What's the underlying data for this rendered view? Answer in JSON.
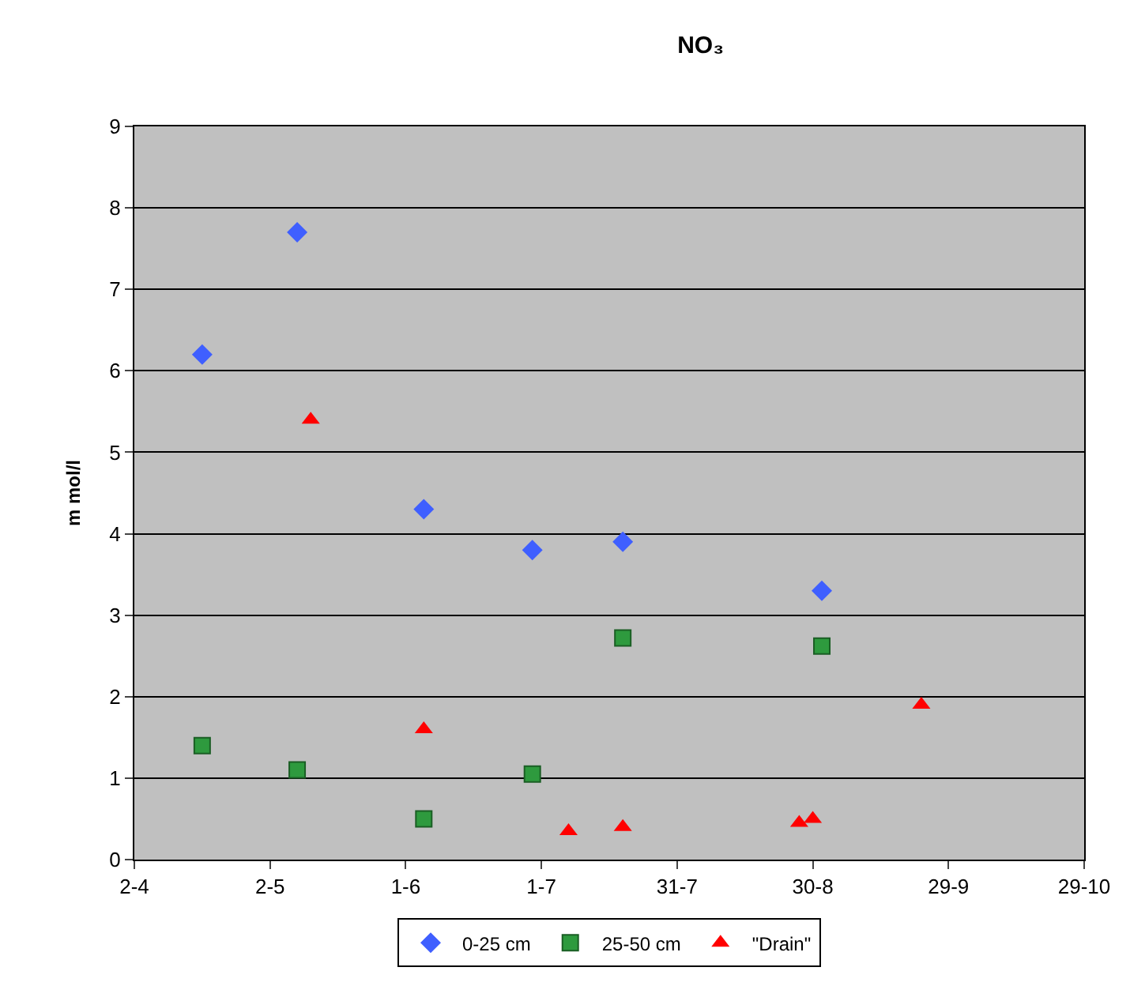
{
  "chart_data": {
    "type": "scatter",
    "title": "NO₃",
    "ylabel": "m mol/l",
    "xlim": [
      "--04-02",
      "--10-29"
    ],
    "xticks": [
      {
        "value": "--04-02",
        "label": "2-4"
      },
      {
        "value": "--05-02",
        "label": "2-5"
      },
      {
        "value": "--06-01",
        "label": "1-6"
      },
      {
        "value": "--07-01",
        "label": "1-7"
      },
      {
        "value": "--07-31",
        "label": "31-7"
      },
      {
        "value": "--08-30",
        "label": "30-8"
      },
      {
        "value": "--09-29",
        "label": "29-9"
      },
      {
        "value": "--10-29",
        "label": "29-10"
      }
    ],
    "ylim": [
      0,
      9
    ],
    "yticks": [
      0,
      1,
      2,
      3,
      4,
      5,
      6,
      7,
      8,
      9
    ],
    "grid": "y",
    "legend": "bottom",
    "series": [
      {
        "name": "0-25 cm",
        "color": "#3f5fff",
        "marker": "diamond",
        "x": [
          "--04-17",
          "--05-08",
          "--06-05",
          "--06-29",
          "--07-19",
          "--09-01"
        ],
        "values": [
          6.2,
          7.7,
          4.3,
          3.8,
          3.9,
          3.3
        ]
      },
      {
        "name": "25-50 cm",
        "color": "#2e9a3e",
        "marker": "square",
        "x": [
          "--04-17",
          "--05-08",
          "--06-05",
          "--06-29",
          "--07-19",
          "--09-01"
        ],
        "values": [
          1.4,
          1.1,
          0.5,
          1.05,
          2.72,
          2.62
        ]
      },
      {
        "name": "\"Drain\"",
        "color": "#ff0000",
        "marker": "triangle",
        "x": [
          "--05-11",
          "--06-05",
          "--07-07",
          "--07-19",
          "--08-27",
          "--08-30",
          "--09-23"
        ],
        "values": [
          5.4,
          1.6,
          0.35,
          0.4,
          0.45,
          0.5,
          1.9
        ]
      }
    ]
  }
}
